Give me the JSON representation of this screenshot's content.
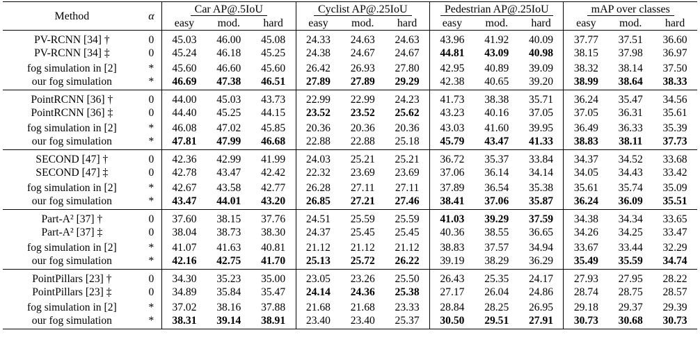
{
  "header": {
    "method": "Method",
    "alpha": "α",
    "groups": [
      "Car AP@.5IoU",
      "Cyclist AP@.25IoU",
      "Pedestrian AP@.25IoU",
      "mAP over classes"
    ],
    "sub": [
      "easy",
      "mod.",
      "hard"
    ]
  },
  "blocks": [
    {
      "rows": [
        {
          "method": "PV-RCNN [34] †",
          "alpha": "0",
          "vals": [
            "45.03",
            "46.00",
            "45.08",
            "24.33",
            "24.63",
            "24.63",
            "43.96",
            "41.92",
            "40.09",
            "37.77",
            "37.51",
            "36.60"
          ],
          "bold": []
        },
        {
          "method": "PV-RCNN [34] ‡",
          "alpha": "0",
          "vals": [
            "45.24",
            "46.18",
            "45.25",
            "24.38",
            "24.67",
            "24.67",
            "44.81",
            "43.09",
            "40.98",
            "38.15",
            "37.98",
            "36.97"
          ],
          "bold": [
            6,
            7,
            8
          ]
        },
        {
          "method": "fog simulation in [2]",
          "alpha": "*",
          "vals": [
            "45.60",
            "46.60",
            "45.60",
            "26.42",
            "26.93",
            "27.80",
            "42.95",
            "40.89",
            "39.09",
            "38.32",
            "38.14",
            "37.50"
          ],
          "bold": []
        },
        {
          "method": "our fog simulation",
          "alpha": "*",
          "vals": [
            "46.69",
            "47.38",
            "46.51",
            "27.89",
            "27.89",
            "29.29",
            "42.38",
            "40.65",
            "39.20",
            "38.99",
            "38.64",
            "38.33"
          ],
          "bold": [
            0,
            1,
            2,
            3,
            4,
            5,
            9,
            10,
            11
          ]
        }
      ]
    },
    {
      "rows": [
        {
          "method": "PointRCNN [36] †",
          "alpha": "0",
          "vals": [
            "44.00",
            "45.03",
            "43.73",
            "22.99",
            "22.99",
            "24.23",
            "41.73",
            "38.38",
            "35.71",
            "36.24",
            "35.47",
            "34.56"
          ],
          "bold": []
        },
        {
          "method": "PointRCNN [36] ‡",
          "alpha": "0",
          "vals": [
            "44.40",
            "45.25",
            "44.15",
            "23.52",
            "23.52",
            "25.62",
            "43.23",
            "40.16",
            "37.05",
            "37.05",
            "36.31",
            "35.61"
          ],
          "bold": [
            3,
            4,
            5
          ]
        },
        {
          "method": "fog simulation in [2]",
          "alpha": "*",
          "vals": [
            "46.08",
            "47.02",
            "45.85",
            "20.36",
            "20.36",
            "20.36",
            "43.03",
            "41.60",
            "39.95",
            "36.49",
            "36.33",
            "35.39"
          ],
          "bold": []
        },
        {
          "method": "our fog simulation",
          "alpha": "*",
          "vals": [
            "47.81",
            "47.99",
            "46.68",
            "22.88",
            "22.88",
            "25.18",
            "45.79",
            "43.47",
            "41.33",
            "38.83",
            "38.11",
            "37.73"
          ],
          "bold": [
            0,
            1,
            2,
            6,
            7,
            8,
            9,
            10,
            11
          ]
        }
      ]
    },
    {
      "rows": [
        {
          "method": "SECOND [47] †",
          "alpha": "0",
          "vals": [
            "42.36",
            "42.99",
            "41.99",
            "24.03",
            "25.21",
            "25.21",
            "36.72",
            "35.37",
            "33.84",
            "34.37",
            "34.52",
            "33.68"
          ],
          "bold": []
        },
        {
          "method": "SECOND [47] ‡",
          "alpha": "0",
          "vals": [
            "42.78",
            "43.47",
            "42.42",
            "22.32",
            "23.69",
            "23.69",
            "37.06",
            "36.14",
            "34.14",
            "34.05",
            "34.43",
            "33.42"
          ],
          "bold": []
        },
        {
          "method": "fog simulation in [2]",
          "alpha": "*",
          "vals": [
            "42.67",
            "43.58",
            "42.77",
            "26.28",
            "27.11",
            "27.11",
            "37.89",
            "36.54",
            "35.38",
            "35.61",
            "35.74",
            "35.09"
          ],
          "bold": []
        },
        {
          "method": "our fog simulation",
          "alpha": "*",
          "vals": [
            "43.47",
            "44.01",
            "43.20",
            "26.85",
            "27.21",
            "27.46",
            "38.41",
            "37.06",
            "35.87",
            "36.24",
            "36.09",
            "35.51"
          ],
          "bold": [
            0,
            1,
            2,
            3,
            4,
            5,
            6,
            7,
            8,
            9,
            10,
            11
          ]
        }
      ]
    },
    {
      "rows": [
        {
          "method": "Part-A² [37] †",
          "alpha": "0",
          "vals": [
            "37.60",
            "38.15",
            "37.76",
            "24.51",
            "25.59",
            "25.59",
            "41.03",
            "39.29",
            "37.59",
            "34.38",
            "34.34",
            "33.65"
          ],
          "bold": [
            6,
            7,
            8
          ]
        },
        {
          "method": "Part-A² [37] ‡",
          "alpha": "0",
          "vals": [
            "38.04",
            "38.73",
            "38.30",
            "24.37",
            "25.45",
            "25.45",
            "40.36",
            "38.55",
            "36.65",
            "34.26",
            "34.25",
            "33.47"
          ],
          "bold": []
        },
        {
          "method": "fog simulation in [2]",
          "alpha": "*",
          "vals": [
            "41.07",
            "41.63",
            "40.81",
            "21.12",
            "21.12",
            "21.12",
            "38.83",
            "37.57",
            "34.94",
            "33.67",
            "33.44",
            "32.29"
          ],
          "bold": []
        },
        {
          "method": "our fog simulation",
          "alpha": "*",
          "vals": [
            "42.16",
            "42.75",
            "41.70",
            "25.13",
            "25.72",
            "26.22",
            "39.19",
            "38.29",
            "36.29",
            "35.49",
            "35.59",
            "34.74"
          ],
          "bold": [
            0,
            1,
            2,
            3,
            4,
            5,
            9,
            10,
            11
          ]
        }
      ]
    },
    {
      "rows": [
        {
          "method": "PointPillars [23] †",
          "alpha": "0",
          "vals": [
            "34.30",
            "35.23",
            "35.00",
            "23.05",
            "23.26",
            "25.50",
            "26.43",
            "25.35",
            "24.17",
            "27.93",
            "27.95",
            "28.22"
          ],
          "bold": []
        },
        {
          "method": "PointPillars [23] ‡",
          "alpha": "0",
          "vals": [
            "34.89",
            "35.84",
            "35.47",
            "24.14",
            "24.36",
            "25.38",
            "27.17",
            "26.04",
            "24.86",
            "28.74",
            "28.75",
            "28.57"
          ],
          "bold": [
            3,
            4,
            5
          ]
        },
        {
          "method": "fog simulation in [2]",
          "alpha": "*",
          "vals": [
            "37.02",
            "38.16",
            "37.88",
            "21.68",
            "21.68",
            "23.33",
            "28.84",
            "28.25",
            "26.95",
            "29.18",
            "29.37",
            "29.39"
          ],
          "bold": []
        },
        {
          "method": "our fog simulation",
          "alpha": "*",
          "vals": [
            "38.31",
            "39.14",
            "38.91",
            "23.40",
            "23.40",
            "25.37",
            "30.50",
            "29.51",
            "27.91",
            "30.73",
            "30.68",
            "30.73"
          ],
          "bold": [
            0,
            1,
            2,
            6,
            7,
            8,
            9,
            10,
            11
          ]
        }
      ]
    }
  ]
}
